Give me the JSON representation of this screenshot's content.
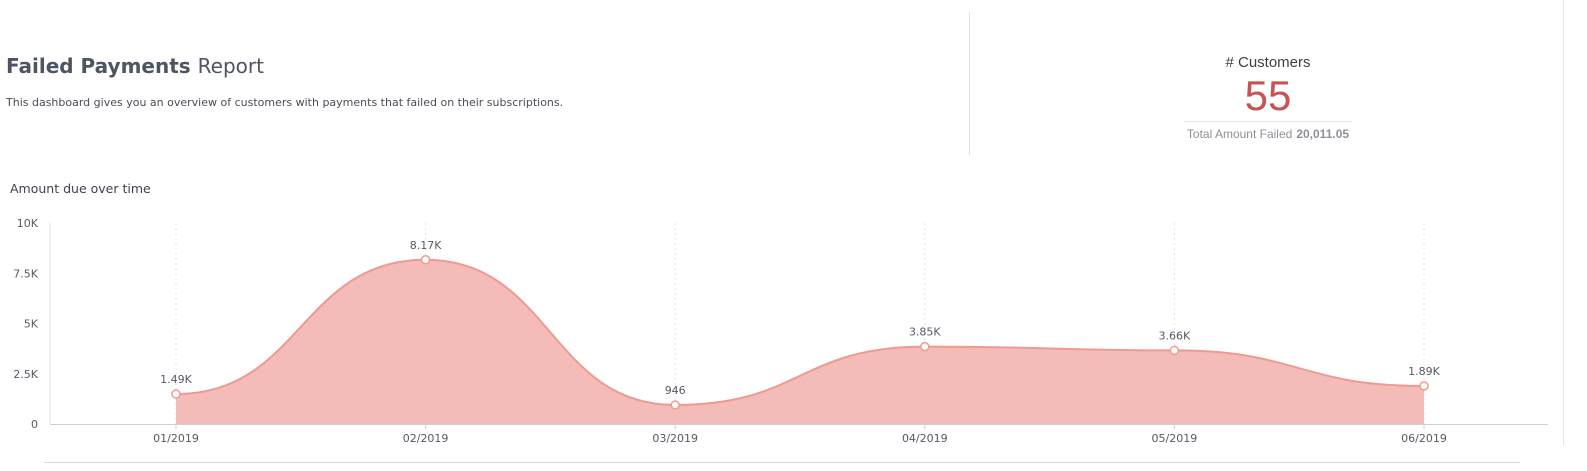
{
  "header": {
    "title_bold": "Failed Payments",
    "title_light": "Report",
    "description": "This dashboard gives you an overview of customers with payments that failed on their subscriptions."
  },
  "kpi": {
    "label": "# Customers",
    "value": "55",
    "sub_label": "Total Amount Failed",
    "sub_value": "20,011.05"
  },
  "colors": {
    "accent": "#c75353",
    "area_fill": "#f4bcb8",
    "area_stroke": "#ee9a92"
  },
  "chart_data": {
    "type": "area",
    "title": "Amount due over time",
    "xlabel": "",
    "ylabel": "",
    "x": [
      "01/2019",
      "02/2019",
      "03/2019",
      "04/2019",
      "05/2019",
      "06/2019"
    ],
    "values": [
      1490,
      8170,
      946,
      3850,
      3660,
      1890
    ],
    "data_labels": [
      "1.49K",
      "8.17K",
      "946",
      "3.85K",
      "3.66K",
      "1.89K"
    ],
    "ylim": [
      0,
      10000
    ],
    "y_ticks": [
      0,
      2500,
      5000,
      7500,
      10000
    ],
    "y_tick_labels": [
      "0",
      "2.5K",
      "5K",
      "7.5K",
      "10K"
    ],
    "grid": "vertical-dotted",
    "legend": "none",
    "curve": "smooth"
  }
}
